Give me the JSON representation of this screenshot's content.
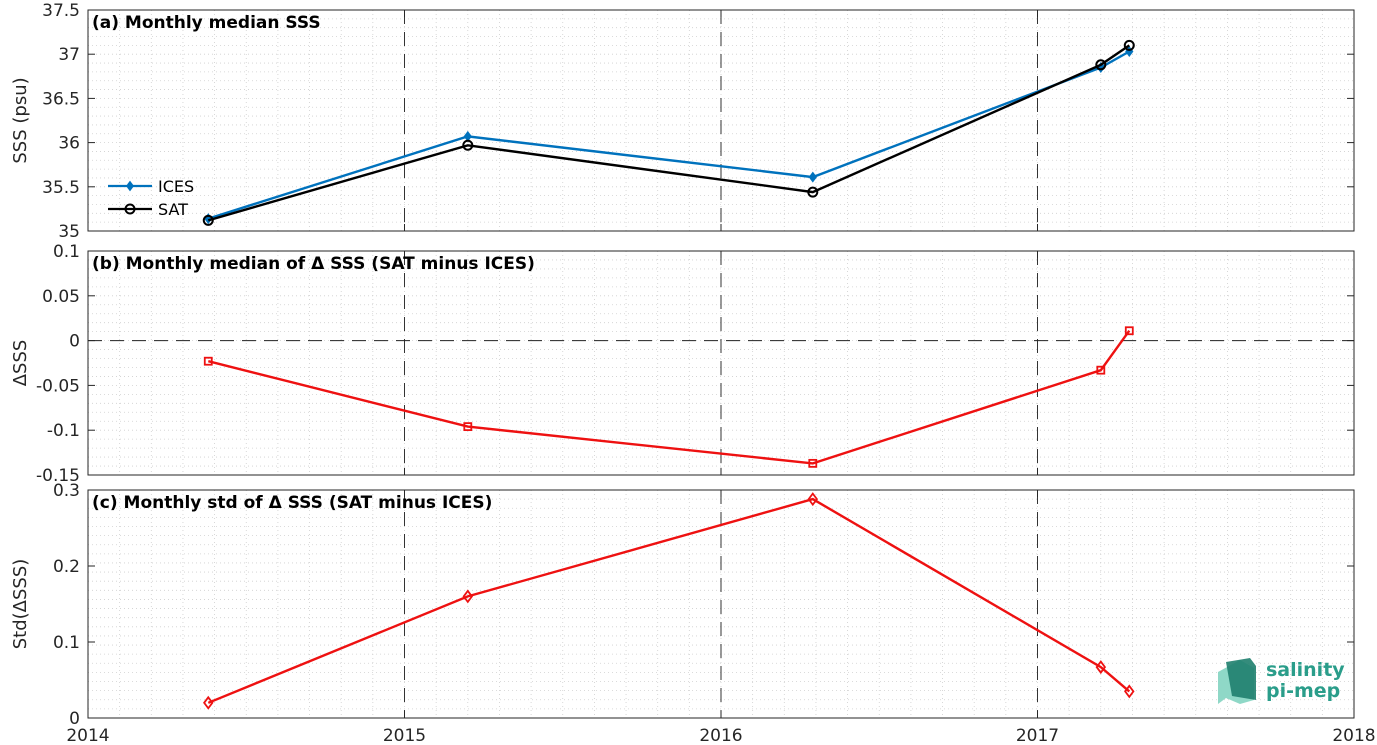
{
  "colors": {
    "ices": "#0072BD",
    "sat": "#000000",
    "delta": "#EE1111",
    "logo_dark": "#1f7f6e",
    "logo_light": "#8fd8c7",
    "logo_text": "#2a9d8a"
  },
  "logo": {
    "line1": "salinity",
    "line2": "pi-mep"
  },
  "chart_data": [
    {
      "type": "line",
      "title": "(a) Monthly median SSS",
      "ylabel": "SSS (psu)",
      "xlim": [
        2014,
        2018
      ],
      "ylim": [
        35,
        37.5
      ],
      "xticks": [
        2014,
        2015,
        2016,
        2017,
        2018
      ],
      "yticks": [
        35,
        35.5,
        36,
        36.5,
        37,
        37.5
      ],
      "ytick_labels": [
        "35",
        "35.5",
        "36",
        "36.5",
        "37",
        "37.5"
      ],
      "legend": "left",
      "grid": "minor dotted",
      "vlines": [
        2015,
        2016,
        2017
      ],
      "series": [
        {
          "name": "ICES",
          "marker": "diamond-filled",
          "x": [
            2014.38,
            2015.2,
            2016.29,
            2017.2,
            2017.29
          ],
          "values": [
            35.14,
            36.07,
            35.61,
            36.85,
            37.03
          ]
        },
        {
          "name": "SAT",
          "marker": "circle",
          "x": [
            2014.38,
            2015.2,
            2016.29,
            2017.2,
            2017.29
          ],
          "values": [
            35.12,
            35.97,
            35.44,
            36.88,
            37.1
          ]
        }
      ]
    },
    {
      "type": "line",
      "title": "(b) Monthly median of Δ SSS (SAT minus ICES)",
      "ylabel": "ΔSSS",
      "xlim": [
        2014,
        2018
      ],
      "ylim": [
        -0.15,
        0.1
      ],
      "xticks": [
        2014,
        2015,
        2016,
        2017,
        2018
      ],
      "yticks": [
        -0.15,
        -0.1,
        -0.05,
        0,
        0.05,
        0.1
      ],
      "ytick_labels": [
        "-0.15",
        "-0.1",
        "-0.05",
        "0",
        "0.05",
        "0.1"
      ],
      "grid": "minor dotted",
      "vlines": [
        2015,
        2016,
        2017
      ],
      "hline": 0,
      "series": [
        {
          "marker": "square",
          "x": [
            2014.38,
            2015.2,
            2016.29,
            2017.2,
            2017.29
          ],
          "values": [
            -0.023,
            -0.096,
            -0.137,
            -0.033,
            0.011
          ]
        }
      ]
    },
    {
      "type": "line",
      "title": "(c) Monthly std of Δ SSS (SAT minus ICES)",
      "ylabel": "Std(ΔSSS)",
      "xlim": [
        2014,
        2018
      ],
      "ylim": [
        0,
        0.3
      ],
      "xticks": [
        2014,
        2015,
        2016,
        2017,
        2018
      ],
      "xtick_labels": [
        "2014",
        "2015",
        "2016",
        "2017",
        "2018"
      ],
      "yticks": [
        0,
        0.1,
        0.2,
        0.3
      ],
      "ytick_labels": [
        "0",
        "0.1",
        "0.2",
        "0.3"
      ],
      "grid": "minor dotted",
      "vlines": [
        2015,
        2016,
        2017
      ],
      "series": [
        {
          "marker": "diamond",
          "x": [
            2014.38,
            2015.2,
            2016.29,
            2017.2,
            2017.29
          ],
          "values": [
            0.02,
            0.16,
            0.288,
            0.067,
            0.035
          ]
        }
      ]
    }
  ]
}
